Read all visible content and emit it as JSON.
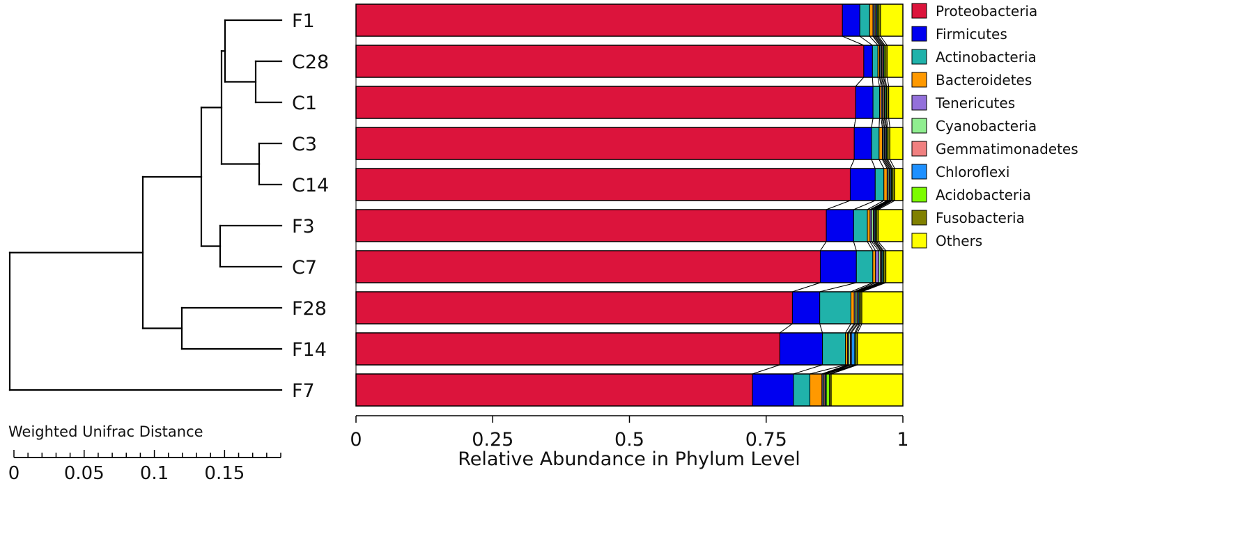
{
  "chart_data": {
    "type": "bar",
    "orientation": "horizontal",
    "stacked": true,
    "normalized": true,
    "samples": [
      "F1",
      "C28",
      "C1",
      "C3",
      "C14",
      "F3",
      "C7",
      "F28",
      "F14",
      "F7"
    ],
    "series": [
      {
        "name": "Proteobacteria",
        "color": "#dc143c",
        "values": [
          0.893,
          0.935,
          0.92,
          0.922,
          0.911,
          0.86,
          0.849,
          0.798,
          0.775,
          0.725
        ]
      },
      {
        "name": "Firmicutes",
        "color": "#0000f0",
        "values": [
          0.032,
          0.016,
          0.032,
          0.032,
          0.046,
          0.05,
          0.066,
          0.05,
          0.078,
          0.075
        ]
      },
      {
        "name": "Actinobacteria",
        "color": "#20b2aa",
        "values": [
          0.018,
          0.01,
          0.012,
          0.014,
          0.016,
          0.025,
          0.03,
          0.057,
          0.042,
          0.03
        ]
      },
      {
        "name": "Bacteroidetes",
        "color": "#ff9900",
        "values": [
          0.006,
          0.003,
          0.003,
          0.006,
          0.006,
          0.005,
          0.005,
          0.006,
          0.004,
          0.022
        ]
      },
      {
        "name": "Tenericutes",
        "color": "#9370db",
        "values": [
          0.002,
          0.002,
          0.002,
          0.002,
          0.002,
          0.003,
          0.006,
          0.002,
          0.002,
          0.002
        ]
      },
      {
        "name": "Cyanobacteria",
        "color": "#90ee90",
        "values": [
          0.002,
          0.002,
          0.002,
          0.002,
          0.002,
          0.003,
          0.003,
          0.003,
          0.003,
          0.002
        ]
      },
      {
        "name": "Gemmatimonadetes",
        "color": "#f08080",
        "values": [
          0.002,
          0.002,
          0.002,
          0.002,
          0.002,
          0.002,
          0.002,
          0.002,
          0.002,
          0.002
        ]
      },
      {
        "name": "Chloroflexi",
        "color": "#1e90ff",
        "values": [
          0.002,
          0.002,
          0.002,
          0.002,
          0.002,
          0.002,
          0.002,
          0.002,
          0.006,
          0.002
        ]
      },
      {
        "name": "Acidobacteria",
        "color": "#7cfc00",
        "values": [
          0.002,
          0.002,
          0.002,
          0.002,
          0.002,
          0.002,
          0.002,
          0.002,
          0.002,
          0.006
        ]
      },
      {
        "name": "Fusobacteria",
        "color": "#808000",
        "values": [
          0.004,
          0.004,
          0.004,
          0.004,
          0.004,
          0.003,
          0.004,
          0.003,
          0.003,
          0.003
        ]
      },
      {
        "name": "Others",
        "color": "#ffff00",
        "values": [
          0.041,
          0.029,
          0.026,
          0.024,
          0.015,
          0.045,
          0.031,
          0.075,
          0.083,
          0.131
        ]
      }
    ],
    "xlabel": "Relative Abundance in Phylum Level",
    "xlim": [
      0,
      1
    ],
    "xticks": [
      {
        "value": 0,
        "label": "0"
      },
      {
        "value": 0.25,
        "label": "0.25"
      },
      {
        "value": 0.5,
        "label": "0.5"
      },
      {
        "value": 0.75,
        "label": "0.75"
      },
      {
        "value": 1,
        "label": "1"
      }
    ],
    "legend_position": "right",
    "dendrogram": {
      "title": "Weighted Unifrac Distance",
      "xlim": [
        0,
        0.19
      ],
      "ticks": [
        {
          "value": 0,
          "label": "0"
        },
        {
          "value": 0.05,
          "label": "0.05"
        },
        {
          "value": 0.1,
          "label": "0.1"
        },
        {
          "value": 0.15,
          "label": "0.15"
        }
      ],
      "tree": [
        [
          [
            [
              "F1",
              [
                "C28",
                "C1"
              ]
            ],
            [
              "C3",
              "C14"
            ]
          ],
          [
            "F3",
            "C7"
          ]
        ],
        [
          "F28",
          "F14"
        ],
        "F7"
      ]
    }
  }
}
